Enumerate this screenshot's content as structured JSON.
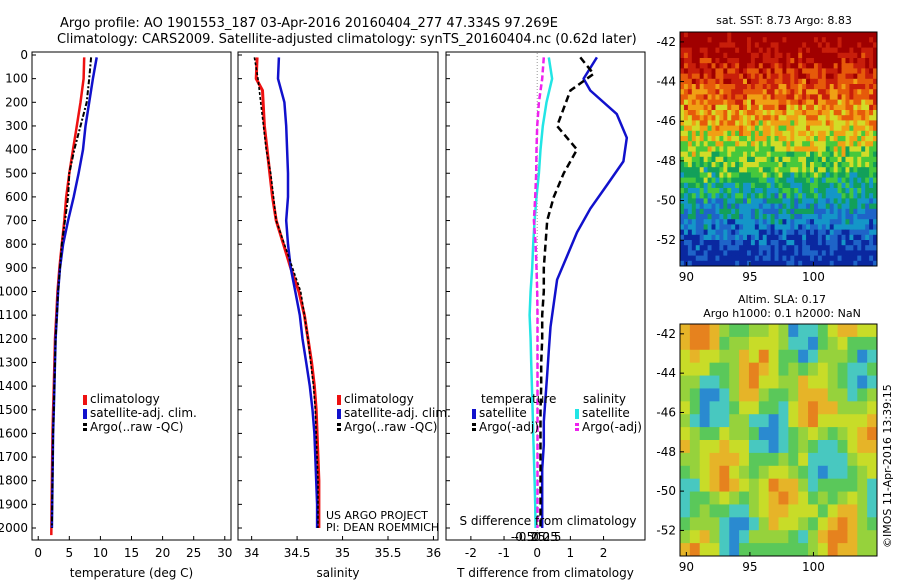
{
  "title_line1": "Argo profile: AO 1901553_187 03-Apr-2016 20160404_277 47.334S 97.269E",
  "title_line2": "Climatology: CARS2009. Satellite-adjusted climatology: synTS_20160404.nc (0.62d later)",
  "credit": "US ARGO PROJECT",
  "pi": "PI: DEAN ROEMMICH",
  "stamp": "©IMOS 11-Apr-2016 13:39:15",
  "colors": {
    "climatology": "#ee1111",
    "satellite": "#1111cc",
    "argo": "#000000",
    "sal_satellite": "#22e5e5",
    "sal_argo": "#ee22ee"
  },
  "chart_data": [
    {
      "type": "line",
      "panel": "temperature",
      "xlabel": "temperature (deg C)",
      "ylabel": "",
      "xlim": [
        -1,
        31
      ],
      "ylim": [
        2050,
        0
      ],
      "xticks": [
        "0",
        "5",
        "10",
        "15",
        "20",
        "25",
        "30"
      ],
      "yticks": [
        "0",
        "100",
        "200",
        "300",
        "400",
        "500",
        "600",
        "700",
        "800",
        "900",
        "1000",
        "1100",
        "1200",
        "1300",
        "1400",
        "1500",
        "1600",
        "1700",
        "1800",
        "1900",
        "2000"
      ],
      "legend": [
        "climatology",
        "satellite-adj. clim.",
        "Argo(..raw -QC)"
      ],
      "series": [
        {
          "name": "climatology",
          "x": [
            7.4,
            7.3,
            6.8,
            6.2,
            5.6,
            5.0,
            4.5,
            4.2,
            3.8,
            3.4,
            3.1,
            2.9,
            2.7,
            2.6,
            2.5,
            2.4,
            2.3,
            2.25,
            2.2,
            2.15,
            2.1
          ],
          "y": [
            10,
            100,
            200,
            300,
            400,
            500,
            600,
            700,
            800,
            900,
            1000,
            1100,
            1200,
            1300,
            1400,
            1500,
            1600,
            1700,
            1800,
            1900,
            2030
          ]
        },
        {
          "name": "satellite-adj. clim.",
          "x": [
            9.4,
            8.8,
            8.2,
            7.6,
            7.2,
            6.5,
            5.7,
            4.8,
            4.0,
            3.5,
            3.2,
            3.0,
            2.8,
            2.7,
            2.6,
            2.5,
            2.4,
            2.35,
            2.3,
            2.25,
            2.2
          ],
          "y": [
            10,
            100,
            200,
            300,
            400,
            500,
            600,
            700,
            800,
            900,
            1000,
            1100,
            1200,
            1300,
            1400,
            1500,
            1600,
            1700,
            1800,
            1900,
            2000
          ]
        },
        {
          "name": "Argo(..raw -QC)",
          "x": [
            8.5,
            8.2,
            7.8,
            6.8,
            5.8,
            5.0,
            4.8,
            4.3,
            3.8,
            3.5,
            3.2,
            3.0,
            2.8,
            2.7,
            2.6,
            2.5,
            2.4,
            2.35,
            2.3,
            2.25,
            2.2
          ],
          "y": [
            10,
            100,
            200,
            300,
            400,
            500,
            600,
            700,
            800,
            900,
            1000,
            1100,
            1200,
            1300,
            1400,
            1500,
            1600,
            1700,
            1800,
            1900,
            2000
          ]
        }
      ]
    },
    {
      "type": "line",
      "panel": "salinity",
      "xlabel": "salinity",
      "ylabel": "",
      "xlim": [
        33.85,
        36.05
      ],
      "ylim": [
        2050,
        0
      ],
      "xticks": [
        "34",
        "34.5",
        "35",
        "35.5",
        "36"
      ],
      "legend": [
        "climatology",
        "satellite-adj. clim.",
        "Argo(..raw -QC)"
      ],
      "series": [
        {
          "name": "climatology",
          "x": [
            34.06,
            34.05,
            34.12,
            34.14,
            34.17,
            34.2,
            34.23,
            34.27,
            34.35,
            34.43,
            34.52,
            34.58,
            34.62,
            34.66,
            34.69,
            34.71,
            34.72,
            34.73,
            34.74,
            34.74,
            34.74
          ],
          "y": [
            10,
            100,
            150,
            300,
            400,
            500,
            600,
            700,
            800,
            900,
            1000,
            1100,
            1200,
            1300,
            1400,
            1500,
            1600,
            1700,
            1800,
            1900,
            2000
          ]
        },
        {
          "name": "satellite-adj. clim.",
          "x": [
            34.3,
            34.29,
            34.36,
            34.38,
            34.39,
            34.4,
            34.4,
            34.38,
            34.4,
            34.43,
            34.48,
            34.53,
            34.56,
            34.6,
            34.64,
            34.67,
            34.69,
            34.7,
            34.71,
            34.72,
            34.72
          ],
          "y": [
            10,
            100,
            200,
            300,
            400,
            500,
            600,
            700,
            800,
            900,
            1000,
            1100,
            1200,
            1300,
            1400,
            1500,
            1600,
            1700,
            1800,
            1900,
            2000
          ]
        },
        {
          "name": "Argo(..raw -QC)",
          "x": [
            34.03,
            34.07,
            34.1,
            34.13,
            34.16,
            34.21,
            34.24,
            34.27,
            34.36,
            34.45,
            34.54,
            34.58,
            34.62,
            34.65,
            34.68,
            34.7,
            34.71,
            34.72,
            34.73,
            34.73,
            34.73
          ],
          "y": [
            10,
            100,
            200,
            300,
            400,
            500,
            600,
            700,
            800,
            900,
            1000,
            1100,
            1200,
            1300,
            1400,
            1500,
            1600,
            1700,
            1800,
            1900,
            2000
          ]
        }
      ]
    },
    {
      "type": "line",
      "panel": "difference",
      "xlabel": "T difference from climatology",
      "top_axis_label": "S difference from climatology",
      "xlim": [
        -2.75,
        3.25
      ],
      "ylim": [
        2050,
        0
      ],
      "xticks": [
        "-2",
        "-1",
        "0",
        "1",
        "2"
      ],
      "top_xticks": [
        "-0.5",
        "-0.25",
        "0",
        "0.25",
        "0.5"
      ],
      "legend_temperature_label": "temperature",
      "legend_salinity_label": "salinity",
      "legend": [
        "satellite",
        "Argo(-adj)",
        "satellite",
        "Argo(-adj)"
      ],
      "series": [
        {
          "name": "satellite",
          "x": [
            1.8,
            1.4,
            1.6,
            2.4,
            2.7,
            2.6,
            2.1,
            1.6,
            1.2,
            0.9,
            0.6,
            0.5,
            0.4,
            0.35,
            0.3,
            0.25,
            0.2,
            0.2,
            0.15,
            0.15,
            0.15
          ],
          "y": [
            10,
            100,
            150,
            250,
            350,
            450,
            550,
            650,
            750,
            850,
            950,
            1050,
            1150,
            1250,
            1350,
            1450,
            1550,
            1650,
            1750,
            1850,
            2000
          ]
        },
        {
          "name": "Argo(-adj)",
          "x": [
            1.3,
            1.7,
            1.0,
            0.6,
            1.2,
            0.8,
            0.5,
            0.3,
            0.25,
            0.2,
            0.2,
            0.15,
            0.15,
            0.12,
            0.12,
            0.1,
            0.1,
            0.1,
            0.1,
            0.1,
            0.1
          ],
          "y": [
            10,
            80,
            150,
            300,
            400,
            500,
            600,
            700,
            800,
            900,
            1000,
            1100,
            1200,
            1300,
            1400,
            1500,
            1600,
            1700,
            1800,
            1900,
            2000
          ]
        },
        {
          "name": "satellite",
          "x": [
            0.35,
            0.45,
            0.28,
            0.17,
            0.1,
            0.05,
            -0.02,
            -0.08,
            -0.12,
            -0.15,
            -0.2,
            -0.23,
            -0.2,
            -0.18,
            -0.16,
            -0.14,
            -0.12,
            -0.1,
            -0.08,
            -0.06,
            -0.05
          ],
          "y": [
            10,
            100,
            200,
            300,
            400,
            500,
            600,
            700,
            800,
            900,
            1000,
            1100,
            1200,
            1300,
            1400,
            1500,
            1600,
            1700,
            1800,
            1900,
            2000
          ]
        },
        {
          "name": "Argo(-adj)",
          "x": [
            0.2,
            0.15,
            0.05,
            0.0,
            -0.02,
            -0.03,
            -0.06,
            -0.1,
            -0.05,
            -0.02,
            0.0,
            0.01,
            0.01,
            0.01,
            0.01,
            0.01,
            0.01,
            0.01,
            0.01,
            0.01,
            0.01
          ],
          "y": [
            10,
            100,
            200,
            300,
            400,
            500,
            600,
            700,
            800,
            900,
            1000,
            1100,
            1200,
            1300,
            1400,
            1500,
            1600,
            1700,
            1800,
            1900,
            2000
          ]
        }
      ]
    },
    {
      "type": "heatmap",
      "panel": "satellite SST map",
      "title": "sat. SST: 8.73 Argo: 8.83",
      "xlim": [
        89.5,
        105
      ],
      "ylim": [
        -53.3,
        -41.5
      ],
      "xticks": [
        "90",
        "95",
        "100"
      ],
      "yticks": [
        "-42",
        "-44",
        "-46",
        "-48",
        "-50",
        "-52"
      ]
    },
    {
      "type": "heatmap",
      "panel": "SLA map",
      "title_line1": "Altim. SLA: 0.17",
      "title_line2": "Argo h1000: 0.1 h2000: NaN",
      "xlim": [
        89.5,
        105
      ],
      "ylim": [
        -53.3,
        -41.5
      ],
      "xticks": [
        "90",
        "95",
        "100"
      ],
      "yticks": [
        "-42",
        "-44",
        "-46",
        "-48",
        "-50",
        "-52"
      ]
    }
  ]
}
